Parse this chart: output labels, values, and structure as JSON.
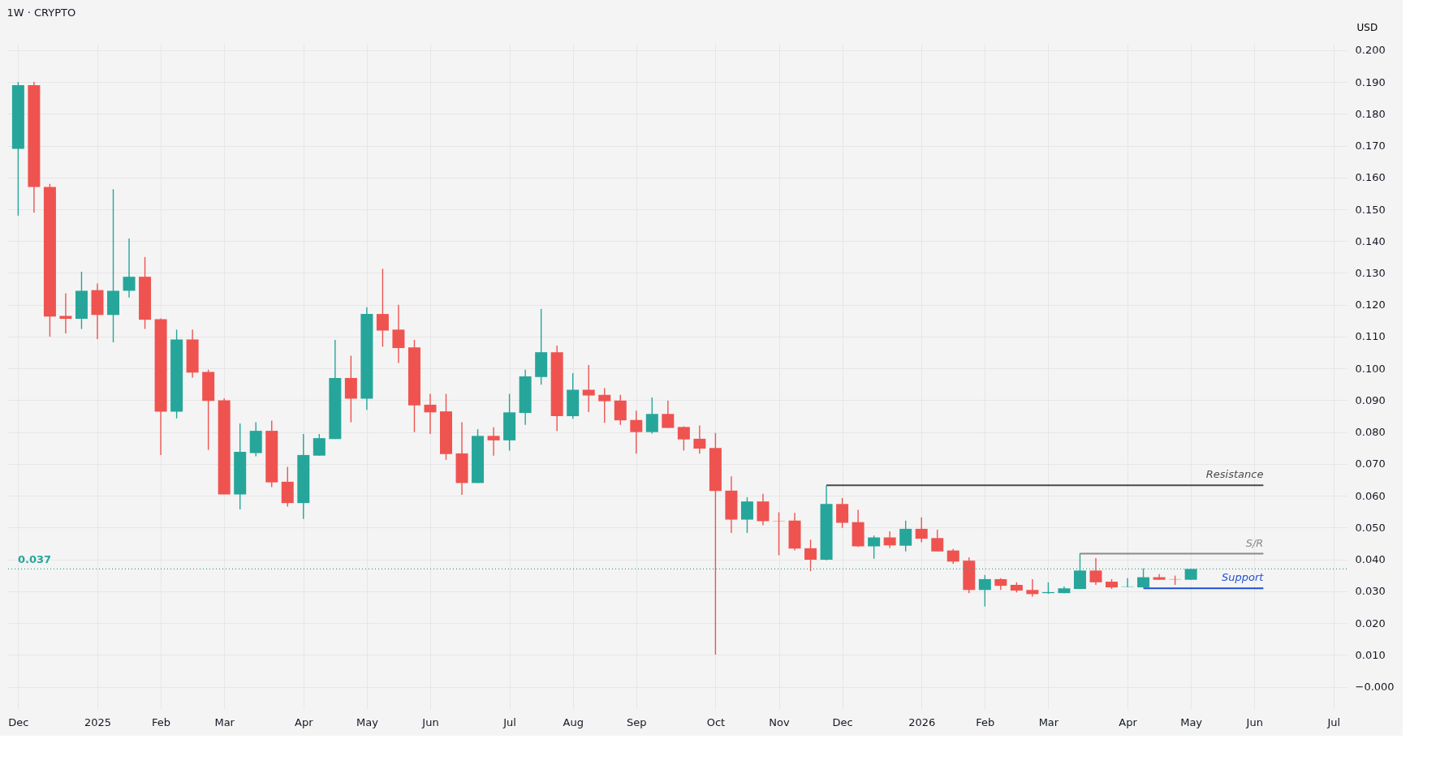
{
  "chart_data": {
    "type": "candlestick",
    "title": "1W · CRYPTO",
    "ylabel": "USD",
    "x": [
      "2024-12-02",
      "2024-12-09",
      "2024-12-16",
      "2024-12-23",
      "2024-12-30",
      "2025-01-06",
      "2025-01-13",
      "2025-01-20",
      "2025-01-27",
      "2025-02-03",
      "2025-02-10",
      "2025-02-17",
      "2025-02-24",
      "2025-03-03",
      "2025-03-10",
      "2025-03-17",
      "2025-03-24",
      "2025-03-31",
      "2025-04-07",
      "2025-04-14",
      "2025-04-21",
      "2025-04-28",
      "2025-05-05",
      "2025-05-12",
      "2025-05-19",
      "2025-05-26",
      "2025-06-02",
      "2025-06-09",
      "2025-06-16",
      "2025-06-23",
      "2025-06-30",
      "2025-07-07",
      "2025-07-14",
      "2025-07-21",
      "2025-07-28",
      "2025-08-04",
      "2025-08-11",
      "2025-08-18",
      "2025-08-25",
      "2025-09-01",
      "2025-09-08",
      "2025-09-15",
      "2025-09-22",
      "2025-09-29",
      "2025-10-06",
      "2025-10-13",
      "2025-10-20",
      "2025-10-27",
      "2025-11-03",
      "2025-11-10",
      "2025-11-17",
      "2025-11-24",
      "2025-12-01",
      "2025-12-08",
      "2025-12-15",
      "2025-12-22",
      "2025-12-29",
      "2026-01-05",
      "2026-01-12",
      "2026-01-19",
      "2026-01-26",
      "2026-02-02",
      "2026-02-09",
      "2026-02-16",
      "2026-02-23",
      "2026-03-02",
      "2026-03-09",
      "2026-03-16",
      "2026-03-23",
      "2026-03-30",
      "2026-04-06",
      "2026-04-13",
      "2026-04-20",
      "2026-04-27",
      "2026-05-04"
    ],
    "ohlc": [
      [
        0.169,
        0.19,
        0.148,
        0.189
      ],
      [
        0.189,
        0.19,
        0.149,
        0.157
      ],
      [
        0.157,
        0.158,
        0.11,
        0.1163
      ],
      [
        0.1165,
        0.1236,
        0.111,
        0.1156
      ],
      [
        0.1156,
        0.1304,
        0.1124,
        0.1244
      ],
      [
        0.1246,
        0.1267,
        0.1092,
        0.1168
      ],
      [
        0.1168,
        0.1563,
        0.1082,
        0.1244
      ],
      [
        0.1244,
        0.1408,
        0.1223,
        0.1288
      ],
      [
        0.1288,
        0.135,
        0.1124,
        0.1153
      ],
      [
        0.1155,
        0.1157,
        0.0728,
        0.0864
      ],
      [
        0.0864,
        0.1122,
        0.0843,
        0.1091
      ],
      [
        0.1091,
        0.1122,
        0.0971,
        0.0987
      ],
      [
        0.0989,
        0.0996,
        0.0744,
        0.0898
      ],
      [
        0.09,
        0.0906,
        0.0604,
        0.0604
      ],
      [
        0.0604,
        0.0827,
        0.0557,
        0.0738
      ],
      [
        0.0734,
        0.0831,
        0.0724,
        0.0804
      ],
      [
        0.0804,
        0.0836,
        0.0627,
        0.0642
      ],
      [
        0.0644,
        0.0691,
        0.0566,
        0.0577
      ],
      [
        0.0577,
        0.0794,
        0.0527,
        0.0728
      ],
      [
        0.0726,
        0.0794,
        0.0726,
        0.0781
      ],
      [
        0.0778,
        0.109,
        0.0778,
        0.097
      ],
      [
        0.097,
        0.104,
        0.0831,
        0.0905
      ],
      [
        0.0905,
        0.1192,
        0.087,
        0.1171
      ],
      [
        0.1171,
        0.1313,
        0.1068,
        0.1119
      ],
      [
        0.1122,
        0.12,
        0.1017,
        0.1064
      ],
      [
        0.1066,
        0.109,
        0.08,
        0.0884
      ],
      [
        0.0886,
        0.092,
        0.0794,
        0.0862
      ],
      [
        0.0865,
        0.092,
        0.0713,
        0.0731
      ],
      [
        0.0733,
        0.0831,
        0.0603,
        0.064
      ],
      [
        0.064,
        0.0809,
        0.064,
        0.0788
      ],
      [
        0.0788,
        0.0815,
        0.0726,
        0.0774
      ],
      [
        0.0774,
        0.092,
        0.0742,
        0.0862
      ],
      [
        0.086,
        0.0996,
        0.0823,
        0.0975
      ],
      [
        0.0973,
        0.1187,
        0.0949,
        0.1051
      ],
      [
        0.1051,
        0.1072,
        0.0803,
        0.085
      ],
      [
        0.085,
        0.0985,
        0.0842,
        0.0933
      ],
      [
        0.0933,
        0.1011,
        0.0863,
        0.0915
      ],
      [
        0.0917,
        0.0938,
        0.0829,
        0.0897
      ],
      [
        0.0899,
        0.0917,
        0.0823,
        0.0837
      ],
      [
        0.0838,
        0.0867,
        0.0732,
        0.08
      ],
      [
        0.08,
        0.0909,
        0.0795,
        0.0857
      ],
      [
        0.0857,
        0.0899,
        0.0813,
        0.0813
      ],
      [
        0.0816,
        0.0818,
        0.0742,
        0.0777
      ],
      [
        0.0779,
        0.0821,
        0.0732,
        0.0748
      ],
      [
        0.075,
        0.0797,
        0.0101,
        0.0615
      ],
      [
        0.0616,
        0.0661,
        0.0483,
        0.0525
      ],
      [
        0.0525,
        0.0595,
        0.0483,
        0.0582
      ],
      [
        0.0582,
        0.0606,
        0.0507,
        0.052
      ],
      [
        0.0521,
        0.0548,
        0.0413,
        0.052
      ],
      [
        0.0522,
        0.0546,
        0.0428,
        0.0434
      ],
      [
        0.0435,
        0.0462,
        0.0363,
        0.0399
      ],
      [
        0.0399,
        0.0632,
        0.0397,
        0.0574
      ],
      [
        0.0574,
        0.0593,
        0.0499,
        0.0515
      ],
      [
        0.0517,
        0.0556,
        0.0439,
        0.0441
      ],
      [
        0.0441,
        0.0475,
        0.0402,
        0.0469
      ],
      [
        0.0469,
        0.0488,
        0.0436,
        0.0444
      ],
      [
        0.0443,
        0.0522,
        0.0425,
        0.0496
      ],
      [
        0.0496,
        0.0532,
        0.0454,
        0.0465
      ],
      [
        0.0467,
        0.0493,
        0.0425,
        0.0425
      ],
      [
        0.0428,
        0.0433,
        0.0386,
        0.0393
      ],
      [
        0.0396,
        0.0406,
        0.0294,
        0.0304
      ],
      [
        0.0304,
        0.0351,
        0.0252,
        0.0338
      ],
      [
        0.0338,
        0.0341,
        0.0304,
        0.0317
      ],
      [
        0.032,
        0.0328,
        0.0296,
        0.0302
      ],
      [
        0.0304,
        0.0338,
        0.0283,
        0.0291
      ],
      [
        0.0294,
        0.0328,
        0.0292,
        0.0297
      ],
      [
        0.0294,
        0.0315,
        0.0294,
        0.0309
      ],
      [
        0.0307,
        0.0419,
        0.0307,
        0.0365
      ],
      [
        0.0365,
        0.0404,
        0.032,
        0.0328
      ],
      [
        0.033,
        0.0338,
        0.0307,
        0.0312
      ],
      [
        0.0314,
        0.0341,
        0.0312,
        0.0315
      ],
      [
        0.0312,
        0.0372,
        0.0312,
        0.0344
      ],
      [
        0.0344,
        0.0354,
        0.0336,
        0.0336
      ],
      [
        0.0338,
        0.0349,
        0.032,
        0.0337
      ],
      [
        0.0336,
        0.037,
        0.0336,
        0.037
      ]
    ],
    "colors": [
      "#26a69a",
      "#ef5350",
      "#ef5350",
      "#ef5350",
      "#26a69a",
      "#ef5350",
      "#26a69a",
      "#26a69a",
      "#ef5350",
      "#ef5350",
      "#26a69a",
      "#ef5350",
      "#ef5350",
      "#ef5350",
      "#26a69a",
      "#26a69a",
      "#ef5350",
      "#ef5350",
      "#26a69a",
      "#26a69a",
      "#26a69a",
      "#ef5350",
      "#26a69a",
      "#ef5350",
      "#ef5350",
      "#ef5350",
      "#ef5350",
      "#ef5350",
      "#ef5350",
      "#26a69a",
      "#ef5350",
      "#26a69a",
      "#26a69a",
      "#26a69a",
      "#ef5350",
      "#26a69a",
      "#ef5350",
      "#ef5350",
      "#ef5350",
      "#ef5350",
      "#26a69a",
      "#ef5350",
      "#ef5350",
      "#ef5350",
      "#ef5350",
      "#ef5350",
      "#26a69a",
      "#ef5350",
      "#ef5350",
      "#ef5350",
      "#ef5350",
      "#26a69a",
      "#ef5350",
      "#ef5350",
      "#26a69a",
      "#ef5350",
      "#26a69a",
      "#ef5350",
      "#ef5350",
      "#ef5350",
      "#ef5350",
      "#26a69a",
      "#ef5350",
      "#ef5350",
      "#ef5350",
      "#26a69a",
      "#26a69a",
      "#26a69a",
      "#ef5350",
      "#ef5350",
      "#26a69a",
      "#26a69a",
      "#ef5350",
      "#ef5350",
      "#26a69a"
    ],
    "series": [
      {
        "type": "line",
        "name": "Resistance",
        "color": "#4a4a4a",
        "x": [
          "2025-11-24",
          "2026-06-05"
        ],
        "values": [
          0.0633,
          0.0633
        ]
      },
      {
        "type": "line",
        "name": "S/R",
        "color": "#8a8a8a",
        "x": [
          "2026-03-16",
          "2026-06-05"
        ],
        "values": [
          0.0418,
          0.0418
        ]
      },
      {
        "type": "line",
        "name": "Support",
        "color": "#1f4fd6",
        "x": [
          "2026-04-13",
          "2026-06-05"
        ],
        "values": [
          0.0309,
          0.0309
        ]
      }
    ],
    "ref_lines": [
      {
        "axis": "y",
        "value": 0.037,
        "label": "0.037",
        "color": "#26a69a",
        "line_style": "dotted"
      }
    ],
    "xlim": [
      "2024-11-29",
      "2026-07-10"
    ],
    "xticks": [
      {
        "value": "2024-12-02",
        "label": "Dec"
      },
      {
        "value": "2025-01-06",
        "label": "2025"
      },
      {
        "value": "2025-02-03",
        "label": "Feb"
      },
      {
        "value": "2025-03-03",
        "label": "Mar"
      },
      {
        "value": "2025-04-07",
        "label": "Apr"
      },
      {
        "value": "2025-05-05",
        "label": "May"
      },
      {
        "value": "2025-06-02",
        "label": "Jun"
      },
      {
        "value": "2025-07-07",
        "label": "Jul"
      },
      {
        "value": "2025-08-04",
        "label": "Aug"
      },
      {
        "value": "2025-09-01",
        "label": "Sep"
      },
      {
        "value": "2025-10-06",
        "label": "Oct"
      },
      {
        "value": "2025-11-03",
        "label": "Nov"
      },
      {
        "value": "2025-12-01",
        "label": "Dec"
      },
      {
        "value": "2026-01-05",
        "label": "2026"
      },
      {
        "value": "2026-02-02",
        "label": "Feb"
      },
      {
        "value": "2026-03-02",
        "label": "Mar"
      },
      {
        "value": "2026-04-06",
        "label": "Apr"
      },
      {
        "value": "2026-05-04",
        "label": "May"
      },
      {
        "value": "2026-06-01",
        "label": "Jun"
      },
      {
        "value": "2026-07-06",
        "label": "Jul"
      }
    ],
    "ylim": [
      -0.007,
      0.202
    ],
    "yticks": [
      {
        "value": 0,
        "label": "−0.000"
      },
      {
        "value": 0.01,
        "label": "0.010"
      },
      {
        "value": 0.02,
        "label": "0.020"
      },
      {
        "value": 0.03,
        "label": "0.030"
      },
      {
        "value": 0.04,
        "label": "0.040"
      },
      {
        "value": 0.05,
        "label": "0.050"
      },
      {
        "value": 0.06,
        "label": "0.060"
      },
      {
        "value": 0.07,
        "label": "0.070"
      },
      {
        "value": 0.08,
        "label": "0.080"
      },
      {
        "value": 0.09,
        "label": "0.090"
      },
      {
        "value": 0.1,
        "label": "0.100"
      },
      {
        "value": 0.11,
        "label": "0.110"
      },
      {
        "value": 0.12,
        "label": "0.120"
      },
      {
        "value": 0.13,
        "label": "0.130"
      },
      {
        "value": 0.14,
        "label": "0.140"
      },
      {
        "value": 0.15,
        "label": "0.150"
      },
      {
        "value": 0.16,
        "label": "0.160"
      },
      {
        "value": 0.17,
        "label": "0.170"
      },
      {
        "value": 0.18,
        "label": "0.180"
      },
      {
        "value": 0.19,
        "label": "0.190"
      },
      {
        "value": 0.2,
        "label": "0.200"
      }
    ],
    "grid": true
  }
}
